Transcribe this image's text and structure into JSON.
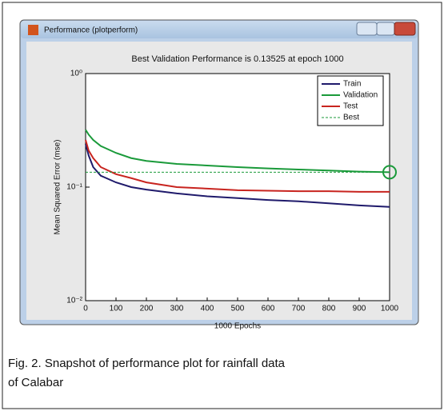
{
  "window_title": "Performance (plotperform)",
  "caption": [
    "Fig.  2. Snapshot of performance plot for rainfall data",
    "of Calabar"
  ],
  "chart_data": {
    "type": "line",
    "title": "Best Validation Performance is 0.13525 at epoch 1000",
    "x_label": "1000 Epochs",
    "y_label": "Mean Squared Error  (mse)",
    "x": [
      0,
      10,
      25,
      50,
      100,
      150,
      200,
      300,
      400,
      500,
      600,
      700,
      800,
      900,
      1000
    ],
    "series": [
      {
        "name": "Train",
        "color": "#1f1a6b",
        "dashed": false,
        "values": [
          0.24,
          0.19,
          0.15,
          0.126,
          0.11,
          0.1,
          0.095,
          0.088,
          0.083,
          0.08,
          0.077,
          0.075,
          0.072,
          0.069,
          0.067
        ]
      },
      {
        "name": "Validation",
        "color": "#1a9a3a",
        "dashed": false,
        "values": [
          0.32,
          0.29,
          0.26,
          0.23,
          0.2,
          0.18,
          0.17,
          0.16,
          0.155,
          0.15,
          0.146,
          0.143,
          0.14,
          0.137,
          0.13525
        ]
      },
      {
        "name": "Test",
        "color": "#c8241f",
        "dashed": false,
        "values": [
          0.26,
          0.21,
          0.18,
          0.15,
          0.13,
          0.12,
          0.11,
          0.1,
          0.097,
          0.094,
          0.093,
          0.092,
          0.092,
          0.091,
          0.091
        ]
      },
      {
        "name": "Best",
        "color": "#1a9a3a",
        "dashed": true,
        "values": [
          0.13525,
          0.13525,
          0.13525,
          0.13525,
          0.13525,
          0.13525,
          0.13525,
          0.13525,
          0.13525,
          0.13525,
          0.13525,
          0.13525,
          0.13525,
          0.13525,
          0.13525
        ]
      }
    ],
    "xlim": [
      0,
      1000
    ],
    "xticks": [
      0,
      100,
      200,
      300,
      400,
      500,
      600,
      700,
      800,
      900,
      1000
    ],
    "ylim": [
      0.01,
      1
    ],
    "log_y": true,
    "yticks": [
      {
        "value": 0.01,
        "label": "10⁻²"
      },
      {
        "value": 0.1,
        "label": "10⁻¹"
      },
      {
        "value": 1,
        "label": "10⁰"
      }
    ],
    "legend": "top-right"
  }
}
